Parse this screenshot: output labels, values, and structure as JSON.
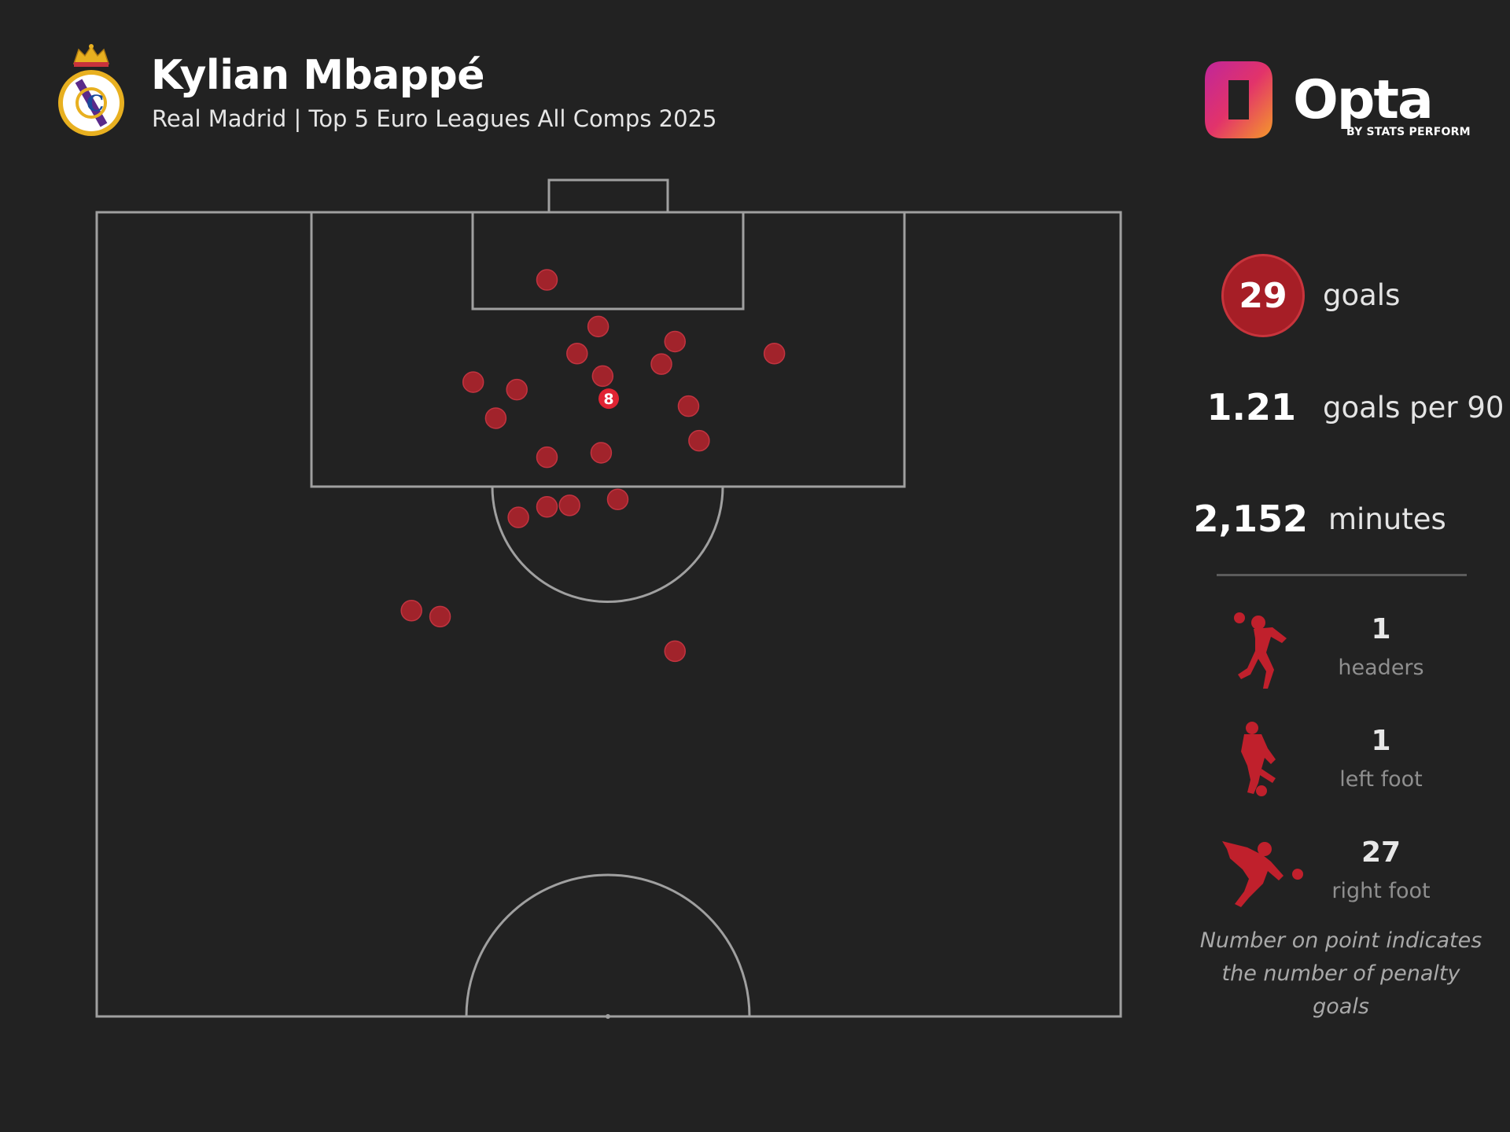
{
  "header": {
    "player": "Kylian Mbappé",
    "subtitle": "Real Madrid | Top 5 Euro Leagues All Comps 2025",
    "crest_icon": "real-madrid-crest",
    "brand": {
      "logo_word": "Opta",
      "byline": "BY STATS PERFORM"
    }
  },
  "stats": {
    "goals": {
      "value": "29",
      "label": "goals"
    },
    "goals_per_90": {
      "value": "1.21",
      "label": "goals per 90"
    },
    "minutes": {
      "value": "2,152",
      "label": "minutes"
    }
  },
  "body_parts": [
    {
      "count": "1",
      "label": "headers",
      "icon": "header-player-icon"
    },
    {
      "count": "1",
      "label": "left foot",
      "icon": "left-foot-player-icon"
    },
    {
      "count": "27",
      "label": "right foot",
      "icon": "right-foot-player-icon"
    }
  ],
  "footnote": {
    "line1": "Number on point indicates",
    "line2": "the number of penalty goals"
  },
  "colors": {
    "background": "#222222",
    "goal_marker": "#b7232d",
    "penalty_marker": "#e02433",
    "pitch_lines": "#a0a0a0",
    "accent_red": "#a61e26"
  },
  "chart_data": {
    "type": "scatter",
    "title": "Kylian Mbappé",
    "subtitle": "Real Madrid | Top 5 Euro Leagues All Comps 2025",
    "xlabel": "",
    "ylabel": "",
    "x_axis": "pitch width, 0 = left touchline, 68 = right touchline (m)",
    "y_axis": "distance from goal line (m)",
    "xlim": [
      0,
      68
    ],
    "ylim": [
      0,
      53.5
    ],
    "grid": false,
    "legend": "none",
    "points": [
      {
        "x": 29.9,
        "y": 4.5
      },
      {
        "x": 33.3,
        "y": 7.6
      },
      {
        "x": 38.4,
        "y": 8.6
      },
      {
        "x": 31.9,
        "y": 9.4
      },
      {
        "x": 37.5,
        "y": 10.1
      },
      {
        "x": 45.0,
        "y": 9.4
      },
      {
        "x": 33.6,
        "y": 10.9
      },
      {
        "x": 25.0,
        "y": 11.3
      },
      {
        "x": 27.9,
        "y": 11.8
      },
      {
        "x": 39.3,
        "y": 12.9
      },
      {
        "x": 26.5,
        "y": 13.7
      },
      {
        "x": 40.0,
        "y": 15.2
      },
      {
        "x": 33.5,
        "y": 16.0
      },
      {
        "x": 29.9,
        "y": 16.3
      },
      {
        "x": 34.6,
        "y": 19.1
      },
      {
        "x": 31.4,
        "y": 19.5
      },
      {
        "x": 29.9,
        "y": 19.6
      },
      {
        "x": 28.0,
        "y": 20.3
      },
      {
        "x": 20.9,
        "y": 26.5
      },
      {
        "x": 22.8,
        "y": 26.9
      },
      {
        "x": 38.4,
        "y": 29.2
      }
    ],
    "penalties": [
      {
        "x": 34.0,
        "y": 12.4,
        "count": 8
      }
    ]
  }
}
